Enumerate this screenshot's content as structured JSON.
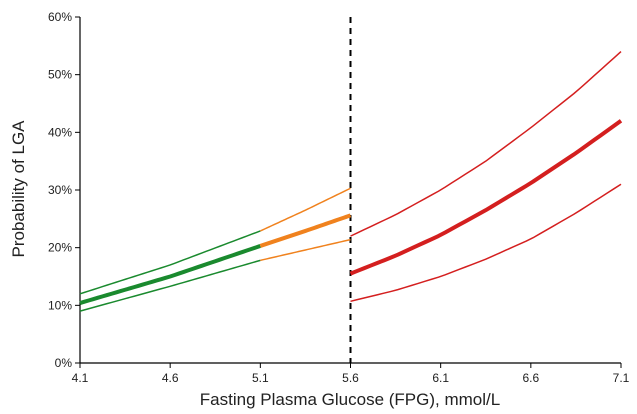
{
  "chart_data": {
    "type": "line",
    "xlabel": "Fasting Plasma Glucose (FPG), mmol/L",
    "ylabel": "Probability of LGA",
    "xlim": [
      4.1,
      7.1
    ],
    "ylim": [
      0,
      60
    ],
    "x_ticks": [
      "4.1",
      "4.6",
      "5.1",
      "5.6",
      "6.1",
      "6.6",
      "7.1"
    ],
    "y_ticks": [
      "0%",
      "10%",
      "20%",
      "30%",
      "40%",
      "50%",
      "60%"
    ],
    "x_tick_values": [
      4.1,
      4.6,
      5.1,
      5.6,
      6.1,
      6.6,
      7.1
    ],
    "y_tick_values": [
      0,
      10,
      20,
      30,
      40,
      50,
      60
    ],
    "grid": false,
    "vertical_reference_line": {
      "x": 5.6,
      "style": "dashed",
      "color": "#000000"
    },
    "series": [
      {
        "role": "estimate",
        "color": "#1a8a2e",
        "width": "thick",
        "x": [
          4.1,
          4.6,
          5.1
        ],
        "y": [
          10.4,
          15.0,
          20.3
        ]
      },
      {
        "role": "ci-upper",
        "color": "#1a8a2e",
        "width": "thin",
        "x": [
          4.1,
          4.6,
          5.1
        ],
        "y": [
          12.0,
          17.0,
          22.9
        ]
      },
      {
        "role": "ci-lower",
        "color": "#1a8a2e",
        "width": "thin",
        "x": [
          4.1,
          4.6,
          5.1
        ],
        "y": [
          9.0,
          13.3,
          17.8
        ]
      },
      {
        "role": "estimate",
        "color": "#f0821e",
        "width": "thick",
        "x": [
          5.1,
          5.35,
          5.6
        ],
        "y": [
          20.3,
          22.9,
          25.6
        ]
      },
      {
        "role": "ci-upper",
        "color": "#f0821e",
        "width": "thin",
        "x": [
          5.1,
          5.35,
          5.6
        ],
        "y": [
          22.9,
          26.5,
          30.3
        ]
      },
      {
        "role": "ci-lower",
        "color": "#f0821e",
        "width": "thin",
        "x": [
          5.1,
          5.35,
          5.6
        ],
        "y": [
          17.8,
          19.6,
          21.4
        ]
      },
      {
        "role": "estimate",
        "color": "#d41f1f",
        "width": "thick",
        "x": [
          5.6,
          5.85,
          6.1,
          6.35,
          6.6,
          6.85,
          7.1
        ],
        "y": [
          15.5,
          18.6,
          22.2,
          26.5,
          31.2,
          36.4,
          42.0
        ]
      },
      {
        "role": "ci-upper",
        "color": "#d41f1f",
        "width": "thin",
        "x": [
          5.6,
          5.85,
          6.1,
          6.35,
          6.6,
          6.85,
          7.1
        ],
        "y": [
          22.0,
          25.7,
          30.0,
          35.0,
          40.8,
          47.0,
          54.0
        ]
      },
      {
        "role": "ci-lower",
        "color": "#d41f1f",
        "width": "thin",
        "x": [
          5.6,
          5.85,
          6.1,
          6.35,
          6.6,
          6.85,
          7.1
        ],
        "y": [
          10.7,
          12.6,
          15.0,
          18.0,
          21.5,
          26.0,
          31.0
        ]
      }
    ]
  }
}
